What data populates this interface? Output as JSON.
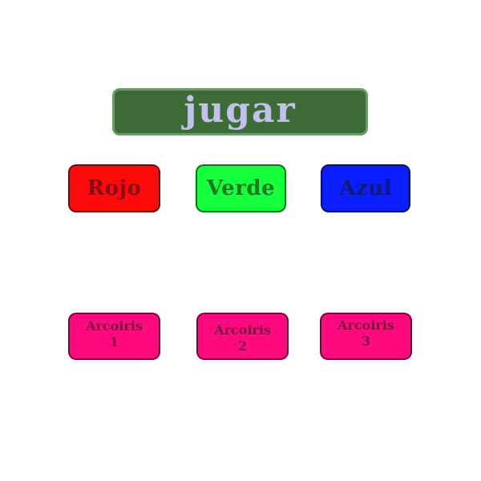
{
  "play": {
    "label": "jugar",
    "bg": "#3d6b35",
    "text_color": "#c3c0f0"
  },
  "colors": [
    {
      "label": "Rojo",
      "bg": "#ff0a0a",
      "text_color": "#8c0a18"
    },
    {
      "label": "Verde",
      "bg": "#14ff3c",
      "text_color": "#1d7a1f"
    },
    {
      "label": "Azul",
      "bg": "#0a1eff",
      "text_color": "#121a78"
    }
  ],
  "rainbows": [
    {
      "word": "Arcoiris",
      "number": "1",
      "bg": "#ff0a7e",
      "text_color": "#7d1242"
    },
    {
      "word": "Arcoiris",
      "number": "2",
      "bg": "#ff0a7e",
      "text_color": "#7d1242"
    },
    {
      "word": "Arcoiris",
      "number": "3",
      "bg": "#ff0a7e",
      "text_color": "#7d1242"
    }
  ]
}
